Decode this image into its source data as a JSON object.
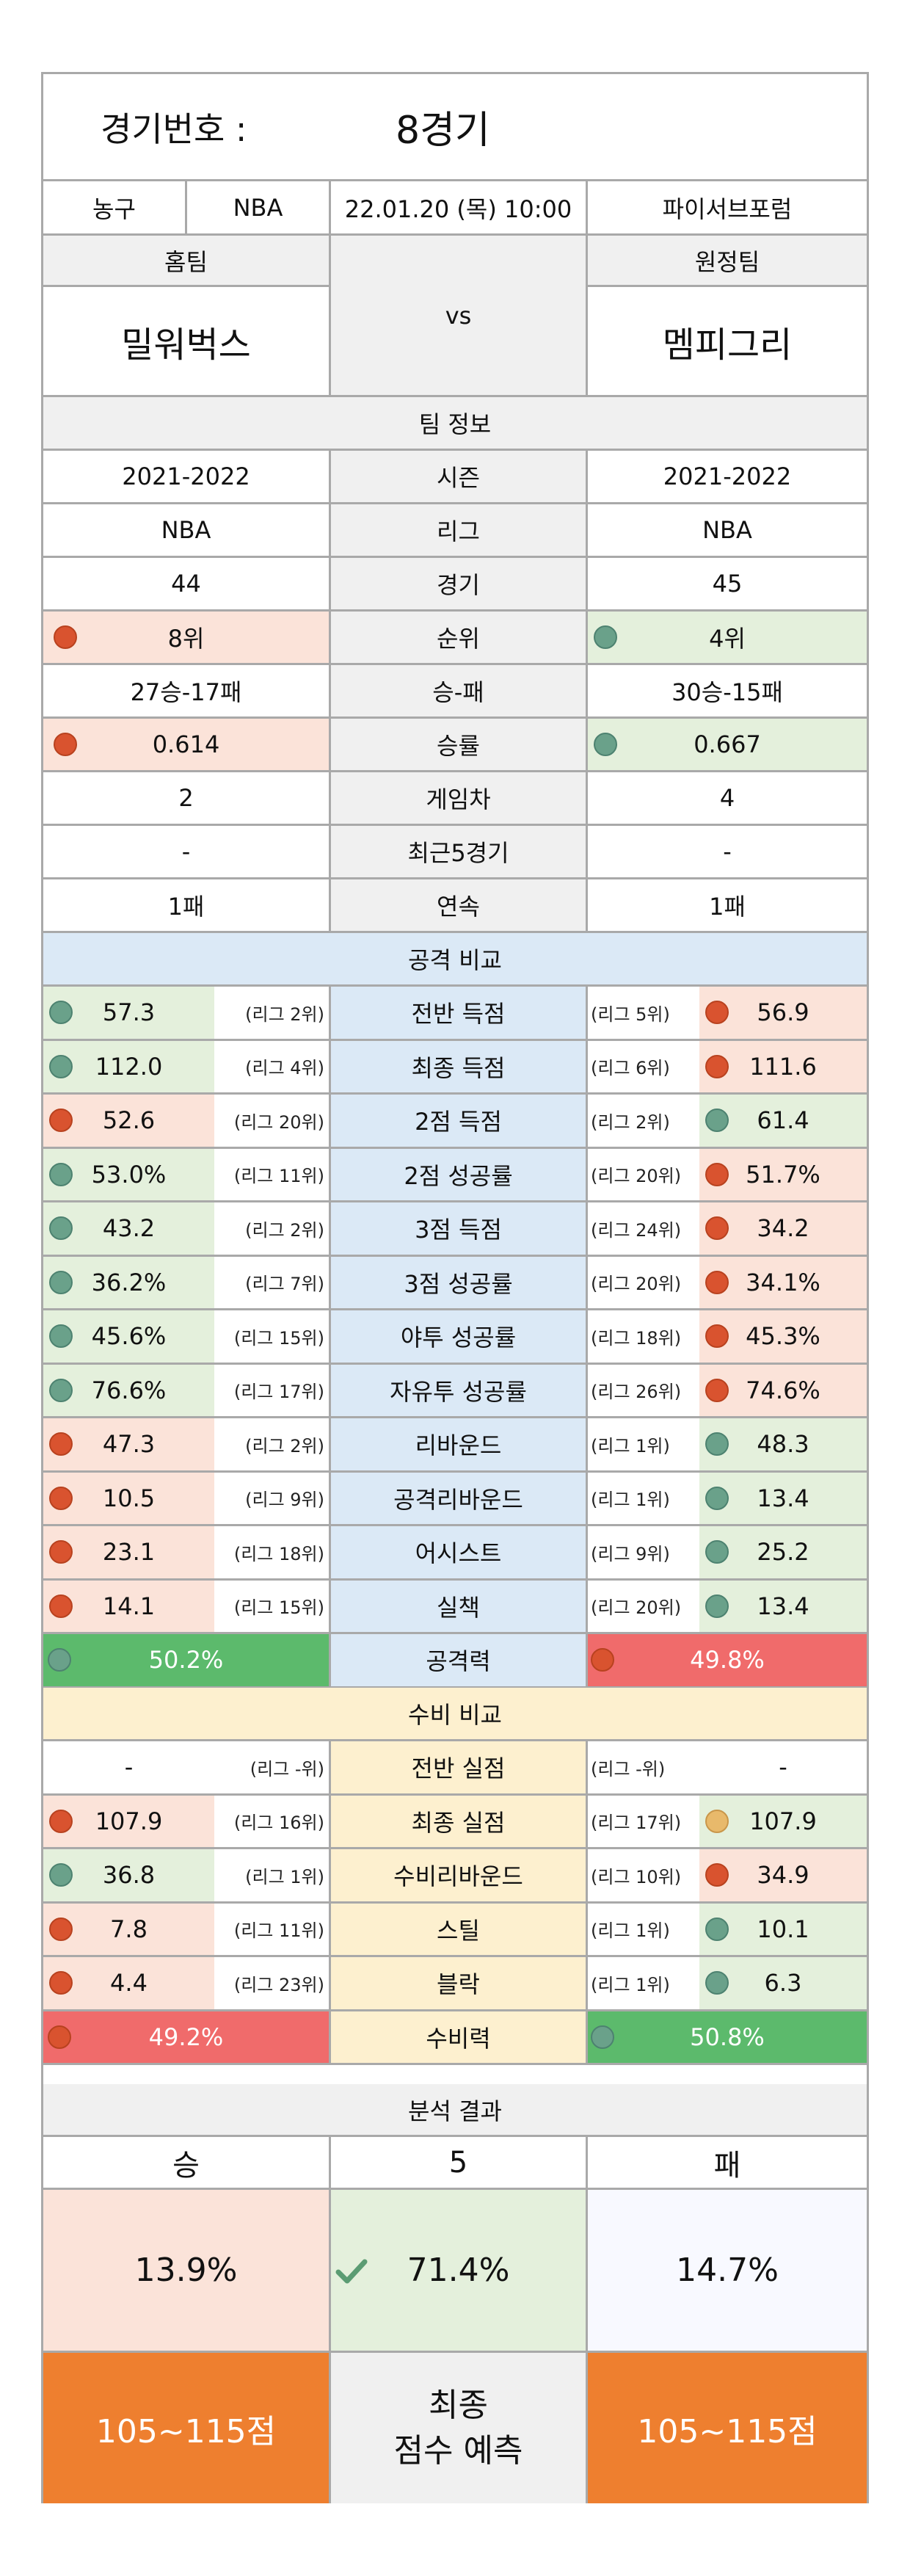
{
  "header": {
    "match_label": "경기번호 :",
    "match_number": "8경기"
  },
  "info": {
    "sport": "농구",
    "league": "NBA",
    "datetime": "22.01.20 (목) 10:00",
    "outlook": "파이서브포럼"
  },
  "teams": {
    "home_label": "홈팀",
    "away_label": "원정팀",
    "home_name": "밀워벅스",
    "away_name": "멤피그리",
    "vs": "vs"
  },
  "team_info": {
    "title": "팀 정보",
    "rows": [
      {
        "label": "시즌",
        "home": "2021-2022",
        "away": "2021-2022"
      },
      {
        "label": "리그",
        "home": "NBA",
        "away": "NBA"
      },
      {
        "label": "경기",
        "home": "44",
        "away": "45"
      },
      {
        "label": "순위",
        "home": "8위",
        "away": "4위",
        "home_dot": "red",
        "away_dot": "green"
      },
      {
        "label": "승-패",
        "home": "27승-17패",
        "away": "30승-15패"
      },
      {
        "label": "승률",
        "home": "0.614",
        "away": "0.667",
        "home_dot": "red",
        "away_dot": "green"
      },
      {
        "label": "게임차",
        "home": "2",
        "away": "4"
      },
      {
        "label": "최근5경기",
        "home": "-",
        "away": "-"
      },
      {
        "label": "연속",
        "home": "1패",
        "away": "1패"
      }
    ]
  },
  "offense": {
    "title": "공격 비교",
    "rows": [
      {
        "label": "전반 득점",
        "home": "57.3",
        "home_rank": "(리그 2위)",
        "home_dot": "green",
        "away": "56.9",
        "away_rank": "(리그 5위)",
        "away_dot": "red"
      },
      {
        "label": "최종 득점",
        "home": "112.0",
        "home_rank": "(리그 4위)",
        "home_dot": "green",
        "away": "111.6",
        "away_rank": "(리그 6위)",
        "away_dot": "red"
      },
      {
        "label": "2점 득점",
        "home": "52.6",
        "home_rank": "(리그 20위)",
        "home_dot": "red",
        "away": "61.4",
        "away_rank": "(리그 2위)",
        "away_dot": "green"
      },
      {
        "label": "2점 성공률",
        "home": "53.0%",
        "home_rank": "(리그 11위)",
        "home_dot": "green",
        "away": "51.7%",
        "away_rank": "(리그 20위)",
        "away_dot": "red"
      },
      {
        "label": "3점 득점",
        "home": "43.2",
        "home_rank": "(리그 2위)",
        "home_dot": "green",
        "away": "34.2",
        "away_rank": "(리그 24위)",
        "away_dot": "red"
      },
      {
        "label": "3점 성공률",
        "home": "36.2%",
        "home_rank": "(리그 7위)",
        "home_dot": "green",
        "away": "34.1%",
        "away_rank": "(리그 20위)",
        "away_dot": "red"
      },
      {
        "label": "야투 성공률",
        "home": "45.6%",
        "home_rank": "(리그 15위)",
        "home_dot": "green",
        "away": "45.3%",
        "away_rank": "(리그 18위)",
        "away_dot": "red"
      },
      {
        "label": "자유투 성공률",
        "home": "76.6%",
        "home_rank": "(리그 17위)",
        "home_dot": "green",
        "away": "74.6%",
        "away_rank": "(리그 26위)",
        "away_dot": "red"
      },
      {
        "label": "리바운드",
        "home": "47.3",
        "home_rank": "(리그 2위)",
        "home_dot": "red",
        "away": "48.3",
        "away_rank": "(리그 1위)",
        "away_dot": "green"
      },
      {
        "label": "공격리바운드",
        "home": "10.5",
        "home_rank": "(리그 9위)",
        "home_dot": "red",
        "away": "13.4",
        "away_rank": "(리그 1위)",
        "away_dot": "green"
      },
      {
        "label": "어시스트",
        "home": "23.1",
        "home_rank": "(리그 18위)",
        "home_dot": "red",
        "away": "25.2",
        "away_rank": "(리그 9위)",
        "away_dot": "green"
      },
      {
        "label": "실책",
        "home": "14.1",
        "home_rank": "(리그 15위)",
        "home_dot": "red",
        "away": "13.4",
        "away_rank": "(리그 20위)",
        "away_dot": "green"
      }
    ],
    "total": {
      "label": "공격력",
      "home": "50.2%",
      "away": "49.8%",
      "home_dot": "green",
      "away_dot": "red"
    }
  },
  "defense": {
    "title": "수비 비교",
    "rows": [
      {
        "label": "전반 실점",
        "home": "-",
        "home_rank": "(리그 -위)",
        "home_dot": "none",
        "away": "-",
        "away_rank": "(리그 -위)",
        "away_dot": "none"
      },
      {
        "label": "최종 실점",
        "home": "107.9",
        "home_rank": "(리그 16위)",
        "home_dot": "red",
        "away": "107.9",
        "away_rank": "(리그 17위)",
        "away_dot": "yellow"
      },
      {
        "label": "수비리바운드",
        "home": "36.8",
        "home_rank": "(리그 1위)",
        "home_dot": "green",
        "away": "34.9",
        "away_rank": "(리그 10위)",
        "away_dot": "red"
      },
      {
        "label": "스틸",
        "home": "7.8",
        "home_rank": "(리그 11위)",
        "home_dot": "red",
        "away": "10.1",
        "away_rank": "(리그 1위)",
        "away_dot": "green"
      },
      {
        "label": "블락",
        "home": "4.4",
        "home_rank": "(리그 23위)",
        "home_dot": "red",
        "away": "6.3",
        "away_rank": "(리그 1위)",
        "away_dot": "green"
      }
    ],
    "total": {
      "label": "수비력",
      "home": "49.2%",
      "away": "50.8%",
      "home_dot": "red",
      "away_dot": "green"
    }
  },
  "analysis": {
    "title": "분석 결과",
    "win_label": "승",
    "draw_label": "5",
    "lose_label": "패",
    "win_pct": "13.9%",
    "draw_pct": "71.4%",
    "lose_pct": "14.7%",
    "home_score": "105~115점",
    "prediction_line1": "최종",
    "prediction_line2": "점수 예측",
    "away_score": "105~115점"
  },
  "colors": {
    "green_dot": "#6aa18a",
    "red_dot": "#d9532f",
    "bar_green": "#5cba6c",
    "bar_red": "#f06b6b",
    "orange": "#ee7f2f"
  }
}
